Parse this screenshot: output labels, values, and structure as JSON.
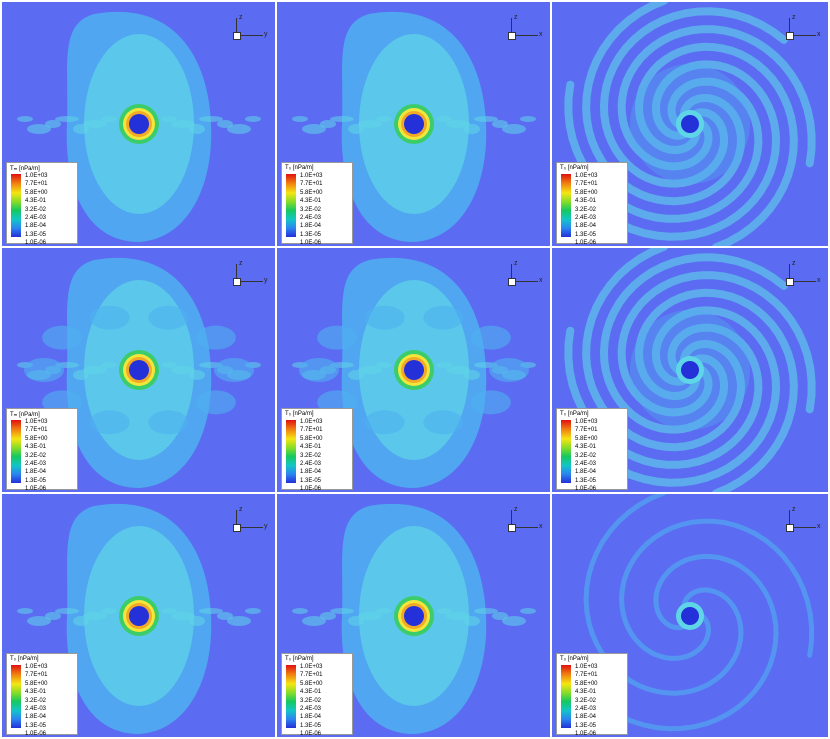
{
  "figure": {
    "panels": [
      {
        "id": "r1c1",
        "kind": "meridional",
        "axis_h": "y",
        "legend_title": "Tₘ [nPa/m]"
      },
      {
        "id": "r1c2",
        "kind": "meridional",
        "axis_h": "x",
        "legend_title": "T₀ [nPa/m]"
      },
      {
        "id": "r1c3",
        "kind": "equatorial",
        "axis_h": "x",
        "legend_title": "T₀ [nPa/m]"
      },
      {
        "id": "r2c1",
        "kind": "meridional",
        "axis_h": "y",
        "legend_title": "Tₘ [nPa/m]"
      },
      {
        "id": "r2c2",
        "kind": "meridional",
        "axis_h": "x",
        "legend_title": "T₀ [nPa/m]"
      },
      {
        "id": "r2c3",
        "kind": "equatorial",
        "axis_h": "x",
        "legend_title": "T₀ [nPa/m]"
      },
      {
        "id": "r3c1",
        "kind": "meridional",
        "axis_h": "y",
        "legend_title": "T₀ [nPa/m]"
      },
      {
        "id": "r3c2",
        "kind": "meridional",
        "axis_h": "x",
        "legend_title": "T₀ [nPa/m]"
      },
      {
        "id": "r3c3",
        "kind": "equatorial",
        "axis_h": "x",
        "legend_title": "T₀ [nPa/m]"
      }
    ],
    "axis_vertical_label": "z",
    "legend_ticks": [
      "1.0E+03",
      "7.7E+01",
      "5.8E+00",
      "4.3E-01",
      "3.2E-02",
      "2.4E-03",
      "1.8E-04",
      "1.3E-05",
      "1.0E-06"
    ],
    "colors": {
      "background": "#5b6cf2",
      "halo_outer": "#4fb0f0",
      "halo_inner": "#5fd6e8",
      "ring_green": "#3ccc6a",
      "ring_yellow": "#f2e63a",
      "ring_orange": "#f39a24",
      "core": "#2430d8"
    }
  }
}
